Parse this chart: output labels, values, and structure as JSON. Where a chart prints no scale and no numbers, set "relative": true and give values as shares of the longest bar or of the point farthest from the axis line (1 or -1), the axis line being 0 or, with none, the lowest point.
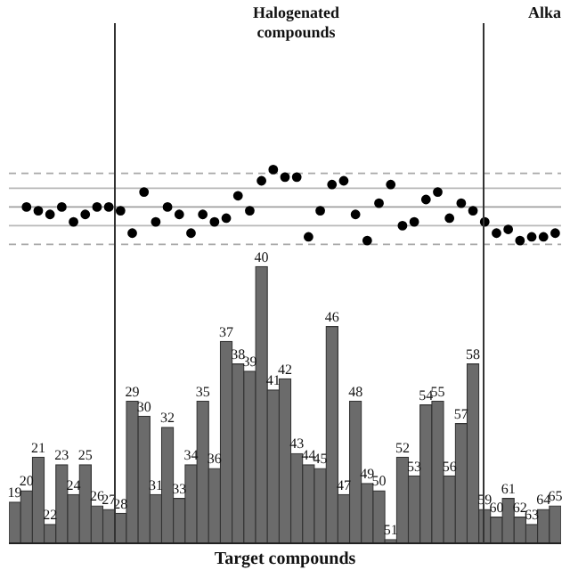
{
  "chart_data": {
    "type": "bar",
    "relative": true,
    "xlabel": "Target compounds",
    "legend": false,
    "categories": [
      "19",
      "20",
      "21",
      "22",
      "23",
      "24",
      "25",
      "26",
      "27",
      "28",
      "29",
      "30",
      "31",
      "32",
      "33",
      "34",
      "35",
      "36",
      "37",
      "38",
      "39",
      "40",
      "41",
      "42",
      "43",
      "44",
      "45",
      "46",
      "47",
      "48",
      "49",
      "50",
      "51",
      "52",
      "53",
      "54",
      "55",
      "56",
      "57",
      "58",
      "59",
      "60",
      "61",
      "62",
      "63",
      "64",
      "65"
    ],
    "series": [
      {
        "color": "#6b6b6b",
        "values": [
          0.11,
          0.14,
          0.23,
          0.05,
          0.21,
          0.13,
          0.21,
          0.1,
          0.09,
          0.08,
          0.38,
          0.34,
          0.13,
          0.31,
          0.12,
          0.21,
          0.38,
          0.2,
          0.54,
          0.48,
          0.46,
          0.74,
          0.41,
          0.44,
          0.24,
          0.21,
          0.2,
          0.58,
          0.13,
          0.38,
          0.16,
          0.14,
          0.01,
          0.23,
          0.18,
          0.37,
          0.38,
          0.18,
          0.32,
          0.48,
          0.09,
          0.07,
          0.12,
          0.07,
          0.05,
          0.09,
          0.1
        ]
      },
      {
        "type": "scatter",
        "color": "#000000",
        "marker": "circle",
        "values": [
          null,
          0.9,
          0.89,
          0.88,
          0.9,
          0.86,
          0.88,
          0.9,
          0.9,
          0.89,
          0.83,
          0.94,
          0.86,
          0.9,
          0.88,
          0.83,
          0.88,
          0.86,
          0.87,
          0.93,
          0.89,
          0.97,
          1,
          0.98,
          0.98,
          0.82,
          0.89,
          0.96,
          0.97,
          0.88,
          0.81,
          0.91,
          0.96,
          0.85,
          0.86,
          0.92,
          0.94,
          0.87,
          0.91,
          0.89,
          0.86,
          0.83,
          0.84,
          0.81,
          0.82,
          0.82,
          0.83
        ]
      }
    ],
    "ref_lines": [
      {
        "axis": "y",
        "value": 0.99,
        "color": "#a8a8a8",
        "line_style": "dashed"
      },
      {
        "axis": "y",
        "value": 0.95,
        "color": "#b8b8b8",
        "line_style": "solid"
      },
      {
        "axis": "y",
        "value": 0.9,
        "color": "#a0a0a0",
        "line_style": "solid"
      },
      {
        "axis": "y",
        "value": 0.85,
        "color": "#b8b8b8",
        "line_style": "solid"
      },
      {
        "axis": "y",
        "value": 0.8,
        "color": "#a8a8a8",
        "line_style": "dashed"
      }
    ],
    "annotations": [
      "Halogenated compounds",
      "Alka"
    ]
  }
}
